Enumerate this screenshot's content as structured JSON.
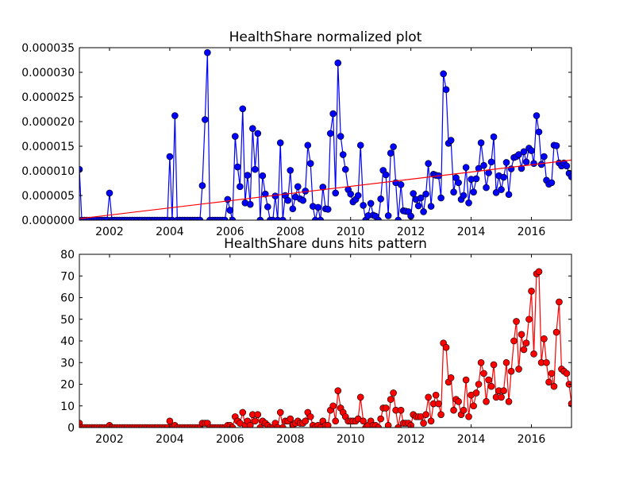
{
  "chart_data": [
    {
      "type": "line",
      "title": "HealthShare normalized plot",
      "x": [
        2001,
        2001.08,
        2001.17,
        2001.25,
        2001.33,
        2001.42,
        2001.5,
        2001.58,
        2001.67,
        2001.75,
        2001.83,
        2001.92,
        2002,
        2002.08,
        2002.17,
        2002.25,
        2002.33,
        2002.42,
        2002.5,
        2002.58,
        2002.67,
        2002.75,
        2002.83,
        2002.92,
        2003,
        2003.08,
        2003.17,
        2003.25,
        2003.33,
        2003.42,
        2003.5,
        2003.58,
        2003.67,
        2003.75,
        2003.83,
        2003.92,
        2004,
        2004.08,
        2004.17,
        2004.25,
        2004.33,
        2004.42,
        2004.5,
        2004.58,
        2004.67,
        2004.75,
        2004.83,
        2004.92,
        2005,
        2005.08,
        2005.17,
        2005.25,
        2005.33,
        2005.42,
        2005.5,
        2005.58,
        2005.67,
        2005.75,
        2005.83,
        2005.92,
        2006,
        2006.08,
        2006.17,
        2006.25,
        2006.33,
        2006.42,
        2006.5,
        2006.58,
        2006.67,
        2006.75,
        2006.83,
        2006.92,
        2007,
        2007.08,
        2007.17,
        2007.25,
        2007.33,
        2007.42,
        2007.5,
        2007.58,
        2007.67,
        2007.75,
        2007.83,
        2007.92,
        2008,
        2008.08,
        2008.17,
        2008.25,
        2008.33,
        2008.42,
        2008.5,
        2008.58,
        2008.67,
        2008.75,
        2008.83,
        2008.92,
        2009,
        2009.08,
        2009.17,
        2009.25,
        2009.33,
        2009.42,
        2009.5,
        2009.58,
        2009.67,
        2009.75,
        2009.83,
        2009.92,
        2010,
        2010.08,
        2010.17,
        2010.25,
        2010.33,
        2010.42,
        2010.5,
        2010.58,
        2010.67,
        2010.75,
        2010.83,
        2010.92,
        2011,
        2011.08,
        2011.17,
        2011.25,
        2011.33,
        2011.42,
        2011.5,
        2011.58,
        2011.67,
        2011.75,
        2011.83,
        2011.92,
        2012,
        2012.08,
        2012.17,
        2012.25,
        2012.33,
        2012.42,
        2012.5,
        2012.58,
        2012.67,
        2012.75,
        2012.83,
        2012.92,
        2013,
        2013.08,
        2013.17,
        2013.25,
        2013.33,
        2013.42,
        2013.5,
        2013.58,
        2013.67,
        2013.75,
        2013.83,
        2013.92,
        2014,
        2014.08,
        2014.17,
        2014.25,
        2014.33,
        2014.42,
        2014.5,
        2014.58,
        2014.67,
        2014.75,
        2014.83,
        2014.92,
        2015,
        2015.08,
        2015.17,
        2015.25,
        2015.33,
        2015.42,
        2015.5,
        2015.58,
        2015.67,
        2015.75,
        2015.83,
        2015.92,
        2016,
        2016.08,
        2016.17,
        2016.25,
        2016.33,
        2016.42,
        2016.5,
        2016.58,
        2016.67,
        2016.75,
        2016.83,
        2016.92,
        2017,
        2017.08,
        2017.17,
        2017.25,
        2017.33
      ],
      "xlim": [
        2001,
        2017.33
      ],
      "xticks": [
        2002,
        2004,
        2006,
        2008,
        2010,
        2012,
        2014,
        2016
      ],
      "ylim": [
        0,
        3.5e-05
      ],
      "yticks": [
        {
          "value": 0,
          "label": "0.000000"
        },
        5e-06,
        {
          "value": 1e-05,
          "label": "0.000010"
        },
        1.5e-05,
        {
          "value": 2e-05,
          "label": "0.000020"
        },
        2.5e-05,
        {
          "value": 3e-05,
          "label": "0.000030"
        },
        3.5e-05
      ],
      "series": [
        {
          "color": "#0000ff",
          "values": [
            1.03e-05,
            0,
            0,
            0,
            0,
            0,
            0,
            0,
            0,
            0,
            0,
            0,
            5.5e-06,
            0,
            0,
            0,
            0,
            0,
            0,
            0,
            0,
            0,
            0,
            0,
            0,
            0,
            0,
            0,
            0,
            0,
            0,
            0,
            0,
            0,
            0,
            0,
            1.29e-05,
            0,
            2.12e-05,
            0,
            0,
            0,
            0,
            0,
            0,
            0,
            0,
            0,
            0,
            7e-06,
            2.04e-05,
            3.4e-05,
            0,
            0,
            0,
            0,
            0,
            0,
            0,
            4.2e-06,
            2e-06,
            0,
            1.7e-05,
            1.08e-05,
            6.8e-06,
            2.26e-05,
            3.5e-06,
            9.1e-06,
            3.2e-06,
            1.86e-05,
            1.03e-05,
            1.76e-05,
            0,
            9e-06,
            5.3e-06,
            2.7e-06,
            0,
            0,
            4.9e-06,
            0,
            1.57e-05,
            0,
            5e-06,
            4e-06,
            1.01e-05,
            2.3e-06,
            4.7e-06,
            6.8e-06,
            4.3e-06,
            4e-06,
            5.9e-06,
            1.52e-05,
            1.15e-05,
            2.8e-06,
            0,
            2.6e-06,
            0,
            6.7e-06,
            2.3e-06,
            2.2e-06,
            1.76e-05,
            2.16e-05,
            5.5e-06,
            3.19e-05,
            1.7e-05,
            1.33e-05,
            1.03e-05,
            6.2e-06,
            5.3e-06,
            3.7e-06,
            4.2e-06,
            5e-06,
            1.52e-05,
            3e-06,
            0,
            9e-07,
            3.4e-06,
            1e-06,
            8e-07,
            0,
            4.3e-06,
            1.01e-05,
            9.2e-06,
            9e-07,
            1.36e-05,
            1.49e-05,
            7.6e-06,
            0,
            7.2e-06,
            1.9e-06,
            1.8e-06,
            1.7e-06,
            8e-07,
            5.4e-06,
            4.2e-06,
            2.9e-06,
            4.5e-06,
            1.7e-06,
            5.3e-06,
            1.15e-05,
            2.8e-06,
            9.3e-06,
            9.1e-06,
            9e-06,
            4.5e-06,
            2.97e-05,
            2.65e-05,
            1.56e-05,
            1.62e-05,
            5.7e-06,
            8.6e-06,
            7.6e-06,
            4.2e-06,
            5e-06,
            1.07e-05,
            3.5e-06,
            8.3e-06,
            5.7e-06,
            8.4e-06,
            1.05e-05,
            1.57e-05,
            1.11e-05,
            6.6e-06,
            9.6e-06,
            1.18e-05,
            1.69e-05,
            5.6e-06,
            9e-06,
            6.2e-06,
            8.7e-06,
            1.17e-05,
            5.2e-06,
            1.04e-05,
            1.27e-05,
            1.29e-05,
            1.33e-05,
            1.05e-05,
            1.39e-05,
            1.18e-05,
            1.46e-05,
            1.41e-05,
            1.15e-05,
            2.12e-05,
            1.79e-05,
            1.13e-05,
            1.29e-05,
            8.1e-06,
            7.3e-06,
            7.6e-06,
            1.52e-05,
            1.51e-05,
            1.16e-05,
            1.1e-05,
            1.16e-05,
            1.1e-05,
            9.5e-06,
            8.8e-06
          ]
        }
      ],
      "trend_line": {
        "x": [
          2001,
          2017.33
        ],
        "values": [
          3e-07,
          1.22e-05
        ],
        "color": "#ff0000"
      }
    },
    {
      "type": "line",
      "title": "HealthShare duns hits pattern",
      "x": [
        2001,
        2001.08,
        2001.17,
        2001.25,
        2001.33,
        2001.42,
        2001.5,
        2001.58,
        2001.67,
        2001.75,
        2001.83,
        2001.92,
        2002,
        2002.08,
        2002.17,
        2002.25,
        2002.33,
        2002.42,
        2002.5,
        2002.58,
        2002.67,
        2002.75,
        2002.83,
        2002.92,
        2003,
        2003.08,
        2003.17,
        2003.25,
        2003.33,
        2003.42,
        2003.5,
        2003.58,
        2003.67,
        2003.75,
        2003.83,
        2003.92,
        2004,
        2004.08,
        2004.17,
        2004.25,
        2004.33,
        2004.42,
        2004.5,
        2004.58,
        2004.67,
        2004.75,
        2004.83,
        2004.92,
        2005,
        2005.08,
        2005.17,
        2005.25,
        2005.33,
        2005.42,
        2005.5,
        2005.58,
        2005.67,
        2005.75,
        2005.83,
        2005.92,
        2006,
        2006.08,
        2006.17,
        2006.25,
        2006.33,
        2006.42,
        2006.5,
        2006.58,
        2006.67,
        2006.75,
        2006.83,
        2006.92,
        2007,
        2007.08,
        2007.17,
        2007.25,
        2007.33,
        2007.42,
        2007.5,
        2007.58,
        2007.67,
        2007.75,
        2007.83,
        2007.92,
        2008,
        2008.08,
        2008.17,
        2008.25,
        2008.33,
        2008.42,
        2008.5,
        2008.58,
        2008.67,
        2008.75,
        2008.83,
        2008.92,
        2009,
        2009.08,
        2009.17,
        2009.25,
        2009.33,
        2009.42,
        2009.5,
        2009.58,
        2009.67,
        2009.75,
        2009.83,
        2009.92,
        2010,
        2010.08,
        2010.17,
        2010.25,
        2010.33,
        2010.42,
        2010.5,
        2010.58,
        2010.67,
        2010.75,
        2010.83,
        2010.92,
        2011,
        2011.08,
        2011.17,
        2011.25,
        2011.33,
        2011.42,
        2011.5,
        2011.58,
        2011.67,
        2011.75,
        2011.83,
        2011.92,
        2012,
        2012.08,
        2012.17,
        2012.25,
        2012.33,
        2012.42,
        2012.5,
        2012.58,
        2012.67,
        2012.75,
        2012.83,
        2012.92,
        2013,
        2013.08,
        2013.17,
        2013.25,
        2013.33,
        2013.42,
        2013.5,
        2013.58,
        2013.67,
        2013.75,
        2013.83,
        2013.92,
        2014,
        2014.08,
        2014.17,
        2014.25,
        2014.33,
        2014.42,
        2014.5,
        2014.58,
        2014.67,
        2014.75,
        2014.83,
        2014.92,
        2015,
        2015.08,
        2015.17,
        2015.25,
        2015.33,
        2015.42,
        2015.5,
        2015.58,
        2015.67,
        2015.75,
        2015.83,
        2015.92,
        2016,
        2016.08,
        2016.17,
        2016.25,
        2016.33,
        2016.42,
        2016.5,
        2016.58,
        2016.67,
        2016.75,
        2016.83,
        2016.92,
        2017,
        2017.08,
        2017.17,
        2017.25,
        2017.33
      ],
      "xlim": [
        2001,
        2017.33
      ],
      "xticks": [
        2002,
        2004,
        2006,
        2008,
        2010,
        2012,
        2014,
        2016
      ],
      "ylim": [
        0,
        80
      ],
      "yticks": [
        0,
        10,
        20,
        30,
        40,
        50,
        60,
        70,
        80
      ],
      "series": [
        {
          "color": "#ff0000",
          "values": [
            2,
            0,
            0,
            0,
            0,
            0,
            0,
            0,
            0,
            0,
            0,
            0,
            1,
            0,
            0,
            0,
            0,
            0,
            0,
            0,
            0,
            0,
            0,
            0,
            0,
            0,
            0,
            0,
            0,
            0,
            0,
            0,
            0,
            0,
            0,
            0,
            3,
            0,
            1,
            0,
            0,
            0,
            0,
            0,
            0,
            0,
            0,
            0,
            0,
            2,
            2,
            2,
            0,
            0,
            0,
            0,
            0,
            0,
            0,
            1,
            1,
            0,
            5,
            3,
            2,
            7,
            1,
            3,
            1,
            6,
            3,
            6,
            0,
            3,
            2,
            1,
            0,
            0,
            2,
            0,
            7,
            0,
            3,
            3,
            4,
            1,
            2,
            3,
            2,
            2,
            3,
            7,
            5,
            1,
            0,
            1,
            0,
            3,
            1,
            1,
            8,
            10,
            3,
            17,
            9,
            7,
            5,
            3,
            3,
            3,
            3,
            4,
            14,
            3,
            0,
            1,
            3,
            1,
            1,
            0,
            4,
            9,
            9,
            1,
            13,
            16,
            8,
            0,
            8,
            2,
            2,
            2,
            1,
            6,
            5,
            5,
            5,
            2,
            6,
            14,
            3,
            11,
            15,
            11,
            6,
            39,
            37,
            21,
            23,
            8,
            13,
            12,
            6,
            8,
            22,
            5,
            15,
            10,
            16,
            20,
            30,
            25,
            12,
            22,
            19,
            29,
            14,
            17,
            14,
            17,
            30,
            12,
            26,
            40,
            49,
            27,
            43,
            36,
            39,
            50,
            63,
            34,
            71,
            72,
            30,
            41,
            30,
            21,
            25,
            19,
            44,
            58,
            27,
            26,
            25,
            20,
            11
          ]
        }
      ]
    }
  ]
}
